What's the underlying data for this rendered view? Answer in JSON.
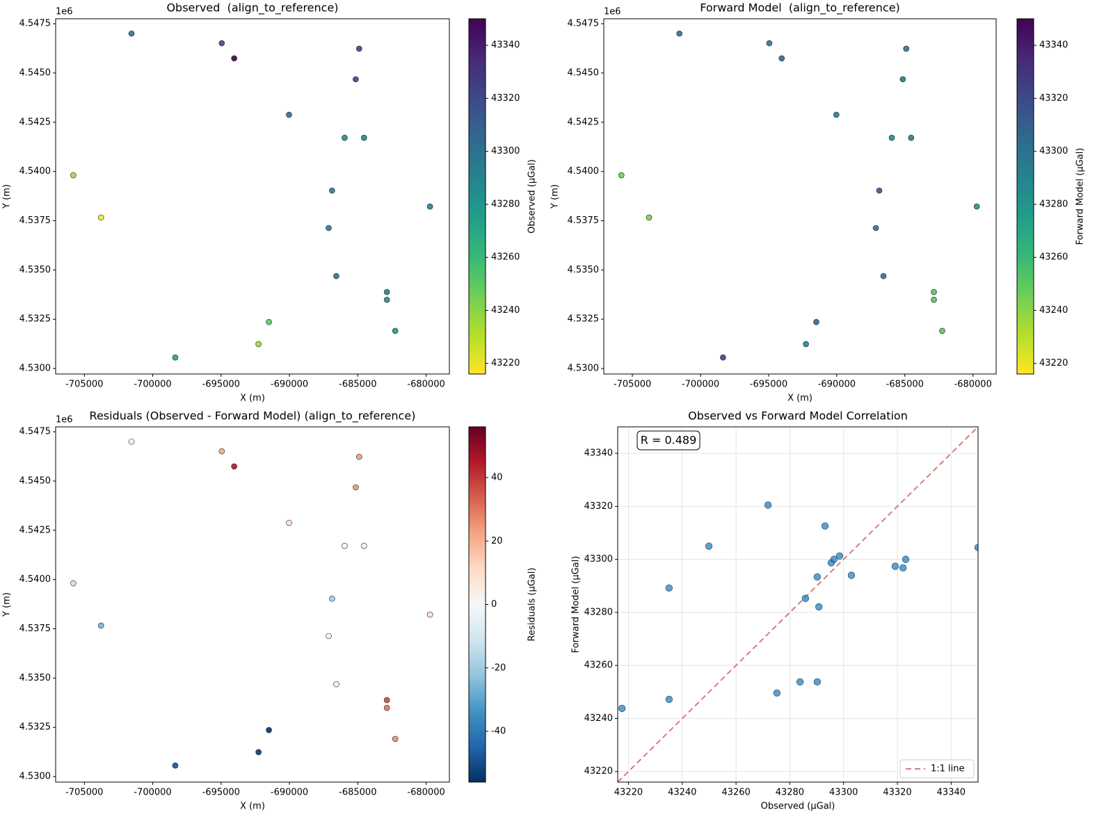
{
  "chart_data": [
    {
      "type": "scatter",
      "title": "Observed  (align_to_reference)",
      "xlabel": "X (m)",
      "ylabel": "Y (m)",
      "y_offset_label": "1e6",
      "x": [
        -701550,
        -694950,
        -694040,
        -684900,
        -685150,
        -690030,
        -685960,
        -684540,
        -705810,
        -703780,
        -686880,
        -679720,
        -687130,
        -686570,
        -682870,
        -682870,
        -691500,
        -682260,
        -692260,
        -698350
      ],
      "y": [
        4547000,
        4546510,
        4545740,
        4546230,
        4544680,
        4542880,
        4541710,
        4541710,
        4539810,
        4537660,
        4539030,
        4538220,
        4537130,
        4534690,
        4533880,
        4533490,
        4532360,
        4531910,
        4531240,
        4530560
      ],
      "colors": [
        43298.5,
        43319.2,
        43350.0,
        43323.1,
        43322.1,
        43302.9,
        43285.8,
        43290.2,
        43235.1,
        43217.6,
        43293.1,
        43290.8,
        43295.4,
        43296.4,
        43290.2,
        43283.8,
        43249.9,
        43275.2,
        43235.1,
        43271.9
      ],
      "colormap": "viridis_r",
      "clim": [
        43216,
        43350
      ],
      "cticks": [
        43220,
        43240,
        43260,
        43280,
        43300,
        43320,
        43340
      ],
      "colorbar_label": "Observed (μGal)",
      "xlim": [
        -707100,
        -678300
      ],
      "ylim": [
        4529720,
        4547750
      ],
      "xticks": [
        -705000,
        -700000,
        -695000,
        -690000,
        -685000,
        -680000
      ],
      "yticks": [
        {
          "value": 4530000,
          "label": "4.5300"
        },
        {
          "value": 4532500,
          "label": "4.5325"
        },
        {
          "value": 4535000,
          "label": "4.5350"
        },
        {
          "value": 4537500,
          "label": "4.5375"
        },
        {
          "value": 4540000,
          "label": "4.5400"
        },
        {
          "value": 4542500,
          "label": "4.5425"
        },
        {
          "value": 4545000,
          "label": "4.5450"
        },
        {
          "value": 4547500,
          "label": "4.5475"
        }
      ],
      "grid": false
    },
    {
      "type": "scatter",
      "title": "Forward Model  (align_to_reference)",
      "xlabel": "X (m)",
      "ylabel": "Y (m)",
      "y_offset_label": "1e6",
      "x": [
        -701550,
        -694950,
        -694040,
        -684900,
        -685150,
        -690030,
        -685960,
        -684540,
        -705810,
        -703780,
        -686880,
        -679720,
        -687130,
        -686570,
        -682870,
        -682870,
        -691500,
        -682260,
        -692260,
        -698350
      ],
      "y": [
        4547000,
        4546510,
        4545740,
        4546230,
        4544680,
        4542880,
        4541710,
        4541710,
        4539810,
        4537660,
        4539030,
        4538220,
        4537130,
        4534690,
        4533880,
        4533490,
        4532360,
        4531910,
        4531240,
        4530560
      ],
      "colors": [
        43301.3,
        43297.4,
        43304.5,
        43300.0,
        43296.8,
        43294.0,
        43285.3,
        43293.4,
        43247.2,
        43243.8,
        43312.6,
        43282.1,
        43298.7,
        43300.0,
        43253.8,
        43253.8,
        43305.0,
        43249.6,
        43289.2,
        43320.5
      ],
      "colormap": "viridis_r",
      "clim": [
        43216,
        43350
      ],
      "cticks": [
        43220,
        43240,
        43260,
        43280,
        43300,
        43320,
        43340
      ],
      "colorbar_label": "Forward Model (μGal)",
      "xlim": [
        -707100,
        -678300
      ],
      "ylim": [
        4529720,
        4547750
      ],
      "xticks": [
        -705000,
        -700000,
        -695000,
        -690000,
        -685000,
        -680000
      ],
      "yticks": [
        {
          "value": 4530000,
          "label": "4.5300"
        },
        {
          "value": 4532500,
          "label": "4.5325"
        },
        {
          "value": 4535000,
          "label": "4.5350"
        },
        {
          "value": 4537500,
          "label": "4.5375"
        },
        {
          "value": 4540000,
          "label": "4.5400"
        },
        {
          "value": 4542500,
          "label": "4.5425"
        },
        {
          "value": 4545000,
          "label": "4.5450"
        },
        {
          "value": 4547500,
          "label": "4.5475"
        }
      ],
      "grid": false
    },
    {
      "type": "scatter",
      "title": "Residuals (Observed - Forward Model) (align_to_reference)",
      "xlabel": "X (m)",
      "ylabel": "Y (m)",
      "y_offset_label": "1e6",
      "x": [
        -701550,
        -694950,
        -694040,
        -684900,
        -685150,
        -690030,
        -685960,
        -684540,
        -705810,
        -703780,
        -686880,
        -679720,
        -687130,
        -686570,
        -682870,
        -682870,
        -691500,
        -682260,
        -692260,
        -698350
      ],
      "y": [
        4547000,
        4546510,
        4545740,
        4546230,
        4544680,
        4542880,
        4541710,
        4541710,
        4539810,
        4537660,
        4539030,
        4538220,
        4537130,
        4534690,
        4533880,
        4533490,
        4532360,
        4531910,
        4531240,
        4530560
      ],
      "colors": [
        -2.8,
        21.8,
        45.5,
        23.1,
        25.3,
        8.9,
        0.5,
        -3.2,
        -12.1,
        -26.2,
        -19.5,
        8.7,
        -3.3,
        -3.6,
        36.4,
        30.0,
        -55.1,
        25.6,
        -54.1,
        -48.6
      ],
      "colormap": "RdBu_r",
      "clim": [
        -56,
        56
      ],
      "cticks": [
        -40,
        -20,
        0,
        20,
        40
      ],
      "colorbar_label": "Residuals (μGal)",
      "xlim": [
        -707100,
        -678300
      ],
      "ylim": [
        4529720,
        4547750
      ],
      "xticks": [
        -705000,
        -700000,
        -695000,
        -690000,
        -685000,
        -680000
      ],
      "yticks": [
        {
          "value": 4530000,
          "label": "4.5300"
        },
        {
          "value": 4532500,
          "label": "4.5325"
        },
        {
          "value": 4535000,
          "label": "4.5350"
        },
        {
          "value": 4537500,
          "label": "4.5375"
        },
        {
          "value": 4540000,
          "label": "4.5400"
        },
        {
          "value": 4542500,
          "label": "4.5425"
        },
        {
          "value": 4545000,
          "label": "4.5450"
        },
        {
          "value": 4547500,
          "label": "4.5475"
        }
      ],
      "grid": false
    },
    {
      "type": "scatter",
      "title": "Observed vs Forward Model Correlation",
      "xlabel": "Observed (μGal)",
      "ylabel": "Forward Model (μGal)",
      "x": [
        43298.5,
        43319.2,
        43350.0,
        43323.1,
        43322.1,
        43302.9,
        43285.8,
        43290.2,
        43235.1,
        43217.6,
        43293.1,
        43290.8,
        43295.4,
        43296.4,
        43290.2,
        43283.8,
        43249.9,
        43275.2,
        43235.1,
        43271.9
      ],
      "y": [
        43301.3,
        43297.4,
        43304.5,
        43300.0,
        43296.8,
        43294.0,
        43285.3,
        43293.4,
        43247.2,
        43243.8,
        43312.6,
        43282.1,
        43298.7,
        43300.0,
        43253.8,
        43253.8,
        43305.0,
        43249.6,
        43289.2,
        43320.5
      ],
      "color": "#1f77b4",
      "annotation": "R = 0.489",
      "reference_line": {
        "name": "1:1 line",
        "color": "#cd5c5c"
      },
      "legend": "lower right",
      "xlim": [
        43216,
        43350
      ],
      "ylim": [
        43216,
        43350
      ],
      "xticks": [
        43220,
        43240,
        43260,
        43280,
        43300,
        43320,
        43340
      ],
      "yticks": [
        43220,
        43240,
        43260,
        43280,
        43300,
        43320,
        43340
      ],
      "grid": true
    }
  ]
}
